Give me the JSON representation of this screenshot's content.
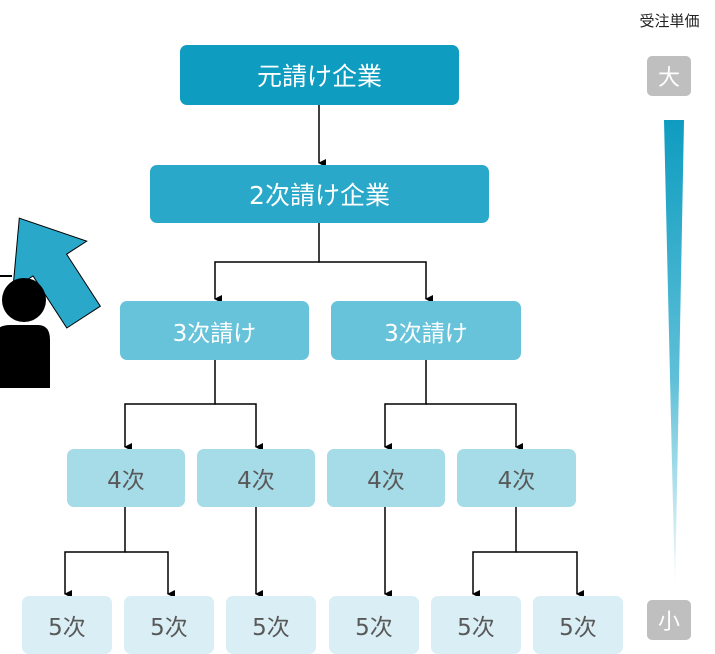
{
  "tree": {
    "root": "元請け企業",
    "second": "2次請け企業",
    "third": [
      "3次請け",
      "3次請け"
    ],
    "fourth": [
      "4次",
      "4次",
      "4次",
      "4次"
    ],
    "fifth": [
      "5次",
      "5次",
      "5次",
      "5次",
      "5次",
      "5次"
    ]
  },
  "scale": {
    "title": "受注単価",
    "top": "大",
    "bottom": "小"
  },
  "colors": {
    "level1": "#0e9cc0",
    "level2": "#2aa8c9",
    "level3": "#66c3da",
    "level4": "#a6dbe8",
    "level5": "#d9eef5",
    "arrow": "#2aa8c9",
    "scale_box": "#bfbfbf"
  },
  "icons": [
    "person-icon",
    "up-arrow-icon"
  ]
}
